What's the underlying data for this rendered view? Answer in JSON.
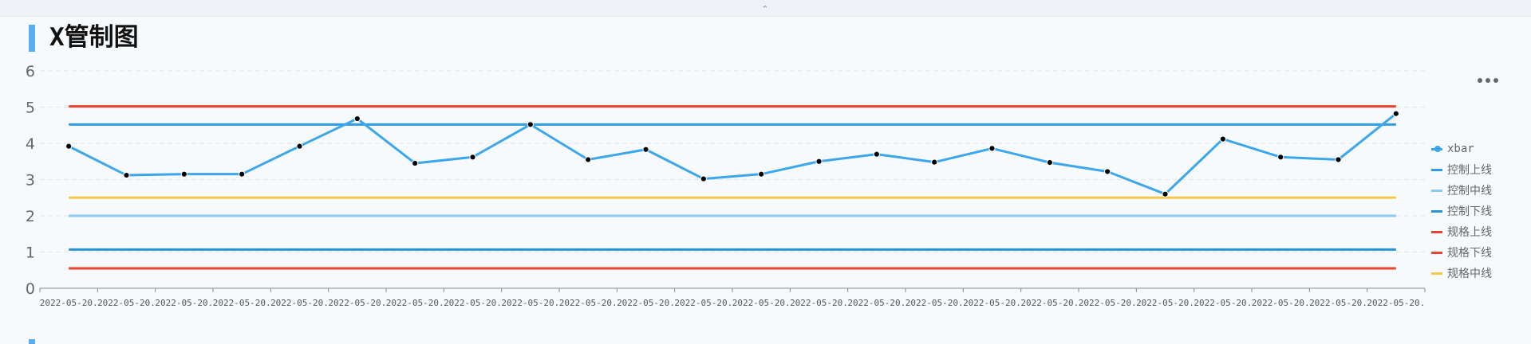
{
  "header": {
    "title": "X管制图",
    "collapse_icon": "chevron-up-double-icon",
    "more_icon": "more-dots-icon"
  },
  "chart_data": {
    "type": "line",
    "title": "X管制图",
    "xlabel": "",
    "ylabel": "",
    "ylim": [
      0,
      6
    ],
    "yticks": [
      0,
      1,
      2,
      3,
      4,
      5,
      6
    ],
    "grid": true,
    "legend_position": "right",
    "categories": [
      "2022-05-20.",
      "2022-05-20.",
      "2022-05-20.",
      "2022-05-20.",
      "2022-05-20.",
      "2022-05-20.",
      "2022-05-20.",
      "2022-05-20.",
      "2022-05-20.",
      "2022-05-20.",
      "2022-05-20.",
      "2022-05-20.",
      "2022-05-20.",
      "2022-05-20.",
      "2022-05-20.",
      "2022-05-20.",
      "2022-05-20.",
      "2022-05-20.",
      "2022-05-20.",
      "2022-05-20.",
      "2022-05-20.",
      "2022-05-20.",
      "2022-05-20.",
      "2022-05-20."
    ],
    "series": [
      {
        "name": "xbar",
        "color": "#3ca6ec",
        "marker": true,
        "values": [
          3.92,
          3.12,
          3.15,
          3.15,
          3.92,
          4.68,
          3.45,
          3.62,
          4.52,
          3.55,
          3.83,
          3.02,
          3.15,
          3.5,
          3.7,
          3.48,
          3.86,
          3.47,
          3.22,
          2.6,
          4.12,
          3.62,
          3.55,
          4.82
        ]
      },
      {
        "name": "控制上线",
        "color": "#2f9be0",
        "marker": false,
        "constant": 4.52
      },
      {
        "name": "控制中线",
        "color": "#8ccaf2",
        "marker": false,
        "constant": 2.0
      },
      {
        "name": "控制下线",
        "color": "#2894d4",
        "marker": false,
        "constant": 1.07
      },
      {
        "name": "规格上线",
        "color": "#e8432e",
        "marker": false,
        "constant": 5.02
      },
      {
        "name": "规格下线",
        "color": "#e8432e",
        "marker": false,
        "constant": 0.55
      },
      {
        "name": "规格中线",
        "color": "#f2c94c",
        "marker": false,
        "constant": 2.5
      }
    ]
  }
}
